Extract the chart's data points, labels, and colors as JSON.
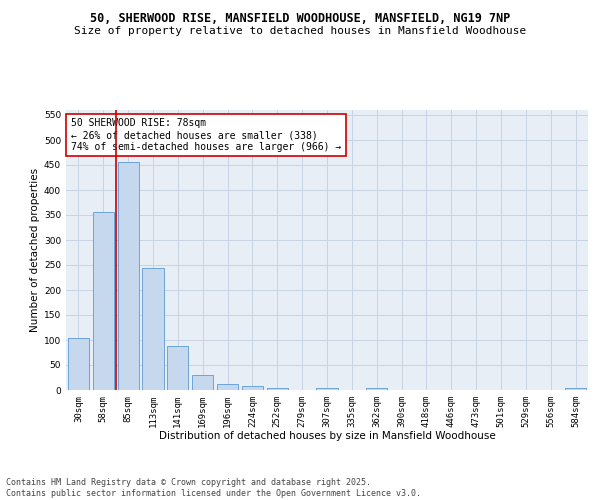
{
  "title_line1": "50, SHERWOOD RISE, MANSFIELD WOODHOUSE, MANSFIELD, NG19 7NP",
  "title_line2": "Size of property relative to detached houses in Mansfield Woodhouse",
  "xlabel": "Distribution of detached houses by size in Mansfield Woodhouse",
  "ylabel": "Number of detached properties",
  "categories": [
    "30sqm",
    "58sqm",
    "85sqm",
    "113sqm",
    "141sqm",
    "169sqm",
    "196sqm",
    "224sqm",
    "252sqm",
    "279sqm",
    "307sqm",
    "335sqm",
    "362sqm",
    "390sqm",
    "418sqm",
    "446sqm",
    "473sqm",
    "501sqm",
    "529sqm",
    "556sqm",
    "584sqm"
  ],
  "values": [
    105,
    357,
    456,
    245,
    88,
    31,
    13,
    8,
    5,
    0,
    4,
    0,
    5,
    0,
    0,
    0,
    0,
    0,
    0,
    0,
    4
  ],
  "bar_color": "#c5d8ed",
  "bar_edge_color": "#5b9bd5",
  "vline_color": "#cc0000",
  "annotation_text": "50 SHERWOOD RISE: 78sqm\n← 26% of detached houses are smaller (338)\n74% of semi-detached houses are larger (966) →",
  "annotation_box_color": "#cc0000",
  "ylim": [
    0,
    560
  ],
  "yticks": [
    0,
    50,
    100,
    150,
    200,
    250,
    300,
    350,
    400,
    450,
    500,
    550
  ],
  "grid_color": "#c8d4e3",
  "bg_color": "#e8eef5",
  "footer_text": "Contains HM Land Registry data © Crown copyright and database right 2025.\nContains public sector information licensed under the Open Government Licence v3.0.",
  "title_fontsize": 8.5,
  "subtitle_fontsize": 8,
  "axis_label_fontsize": 7.5,
  "tick_fontsize": 6.5,
  "annotation_fontsize": 7,
  "footer_fontsize": 6
}
